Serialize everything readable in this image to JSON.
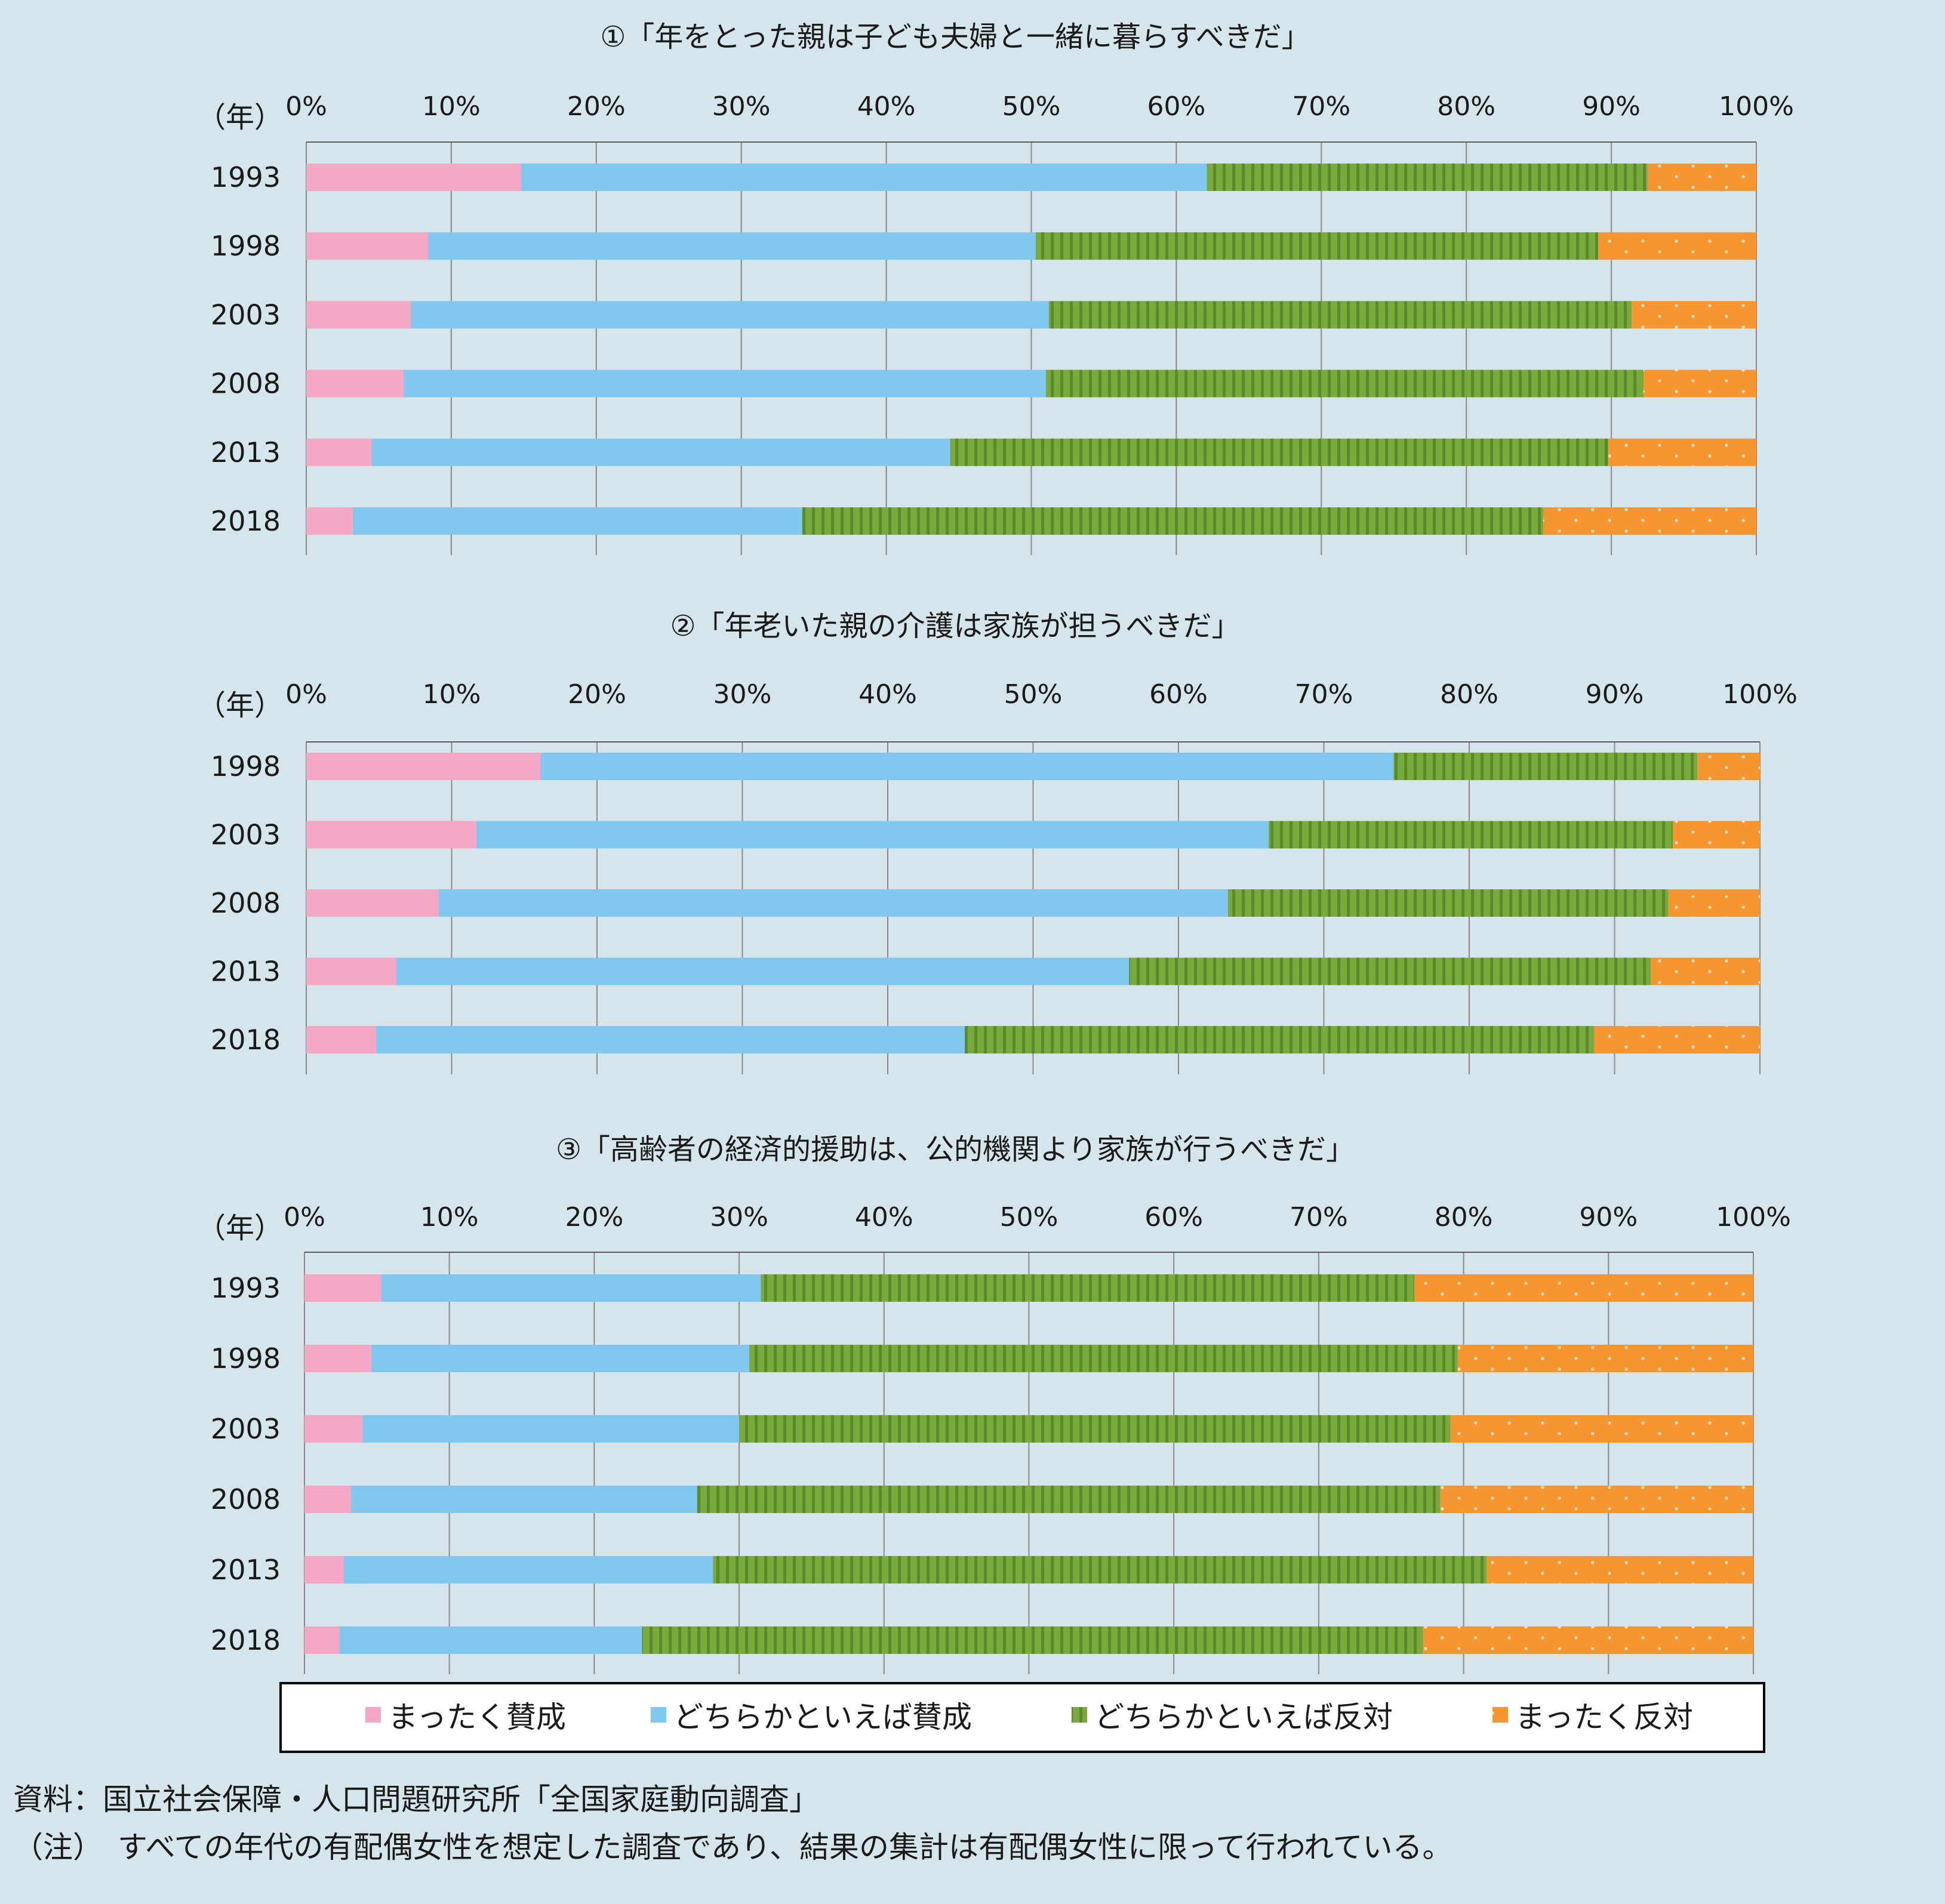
{
  "chart_data": [
    {
      "type": "bar",
      "orientation": "horizontal",
      "stacked": "percent",
      "title": "①「年をとった親は子ども夫婦と一緒に暮らすべきだ」",
      "ylabel": "（年）",
      "categories": [
        "1993",
        "1998",
        "2003",
        "2008",
        "2013",
        "2018"
      ],
      "xticks": [
        "0%",
        "10%",
        "20%",
        "30%",
        "40%",
        "50%",
        "60%",
        "70%",
        "80%",
        "90%",
        "100%"
      ],
      "xlim": [
        0,
        100
      ],
      "series": [
        {
          "name": "まったく賛成",
          "values": [
            14.8,
            8.4,
            7.2,
            6.7,
            4.5,
            3.2
          ]
        },
        {
          "name": "どちらかといえば賛成",
          "values": [
            47.3,
            41.9,
            44.0,
            44.3,
            39.9,
            31.0
          ]
        },
        {
          "name": "どちらかといえば反対",
          "values": [
            30.4,
            38.8,
            40.2,
            41.2,
            45.4,
            51.1
          ]
        },
        {
          "name": "まったく反対",
          "values": [
            7.5,
            10.9,
            8.6,
            7.8,
            10.2,
            14.7
          ]
        }
      ]
    },
    {
      "type": "bar",
      "orientation": "horizontal",
      "stacked": "percent",
      "title": "②「年老いた親の介護は家族が担うべきだ」",
      "ylabel": "（年）",
      "categories": [
        "1998",
        "2003",
        "2008",
        "2013",
        "2018"
      ],
      "xticks": [
        "0%",
        "10%",
        "20%",
        "30%",
        "40%",
        "50%",
        "60%",
        "70%",
        "80%",
        "90%",
        "100%"
      ],
      "xlim": [
        0,
        100
      ],
      "series": [
        {
          "name": "まったく賛成",
          "values": [
            16.1,
            11.7,
            9.1,
            6.2,
            4.8
          ]
        },
        {
          "name": "どちらかといえば賛成",
          "values": [
            58.7,
            54.5,
            54.3,
            50.4,
            40.5
          ]
        },
        {
          "name": "どちらかといえば反対",
          "values": [
            20.9,
            27.8,
            30.3,
            35.9,
            43.3
          ]
        },
        {
          "name": "まったく反対",
          "values": [
            4.3,
            6.0,
            6.3,
            7.5,
            11.4
          ]
        }
      ]
    },
    {
      "type": "bar",
      "orientation": "horizontal",
      "stacked": "percent",
      "title": "③「高齢者の経済的援助は、公的機関より家族が行うべきだ」",
      "ylabel": "（年）",
      "categories": [
        "1993",
        "1998",
        "2003",
        "2008",
        "2013",
        "2018"
      ],
      "xticks": [
        "0%",
        "10%",
        "20%",
        "30%",
        "40%",
        "50%",
        "60%",
        "70%",
        "80%",
        "90%",
        "100%"
      ],
      "xlim": [
        0,
        100
      ],
      "series": [
        {
          "name": "まったく賛成",
          "values": [
            5.3,
            4.6,
            4.0,
            3.2,
            2.7,
            2.4
          ]
        },
        {
          "name": "どちらかといえば賛成",
          "values": [
            26.2,
            26.1,
            26.0,
            23.9,
            25.5,
            20.9
          ]
        },
        {
          "name": "どちらかといえば反対",
          "values": [
            45.1,
            48.9,
            49.1,
            51.3,
            53.4,
            53.9
          ]
        },
        {
          "name": "まったく反対",
          "values": [
            23.4,
            20.4,
            20.9,
            21.6,
            18.4,
            22.8
          ]
        }
      ]
    }
  ],
  "legend": [
    "まったく賛成",
    "どちらかといえば賛成",
    "どちらかといえば反対",
    "まったく反対"
  ],
  "colors": {
    "strongly_agree": "#f5a8c5",
    "somewhat_agree": "#82c7ee",
    "somewhat_disagree": "#7aaa3e",
    "strongly_disagree": "#f7962f"
  },
  "notes": {
    "source": "資料：国立社会保障・人口問題研究所「全国家庭動向調査」",
    "note": "（注）　すべての年代の有配偶女性を想定した調査であり、結果の集計は有配偶女性に限って行われている。"
  }
}
